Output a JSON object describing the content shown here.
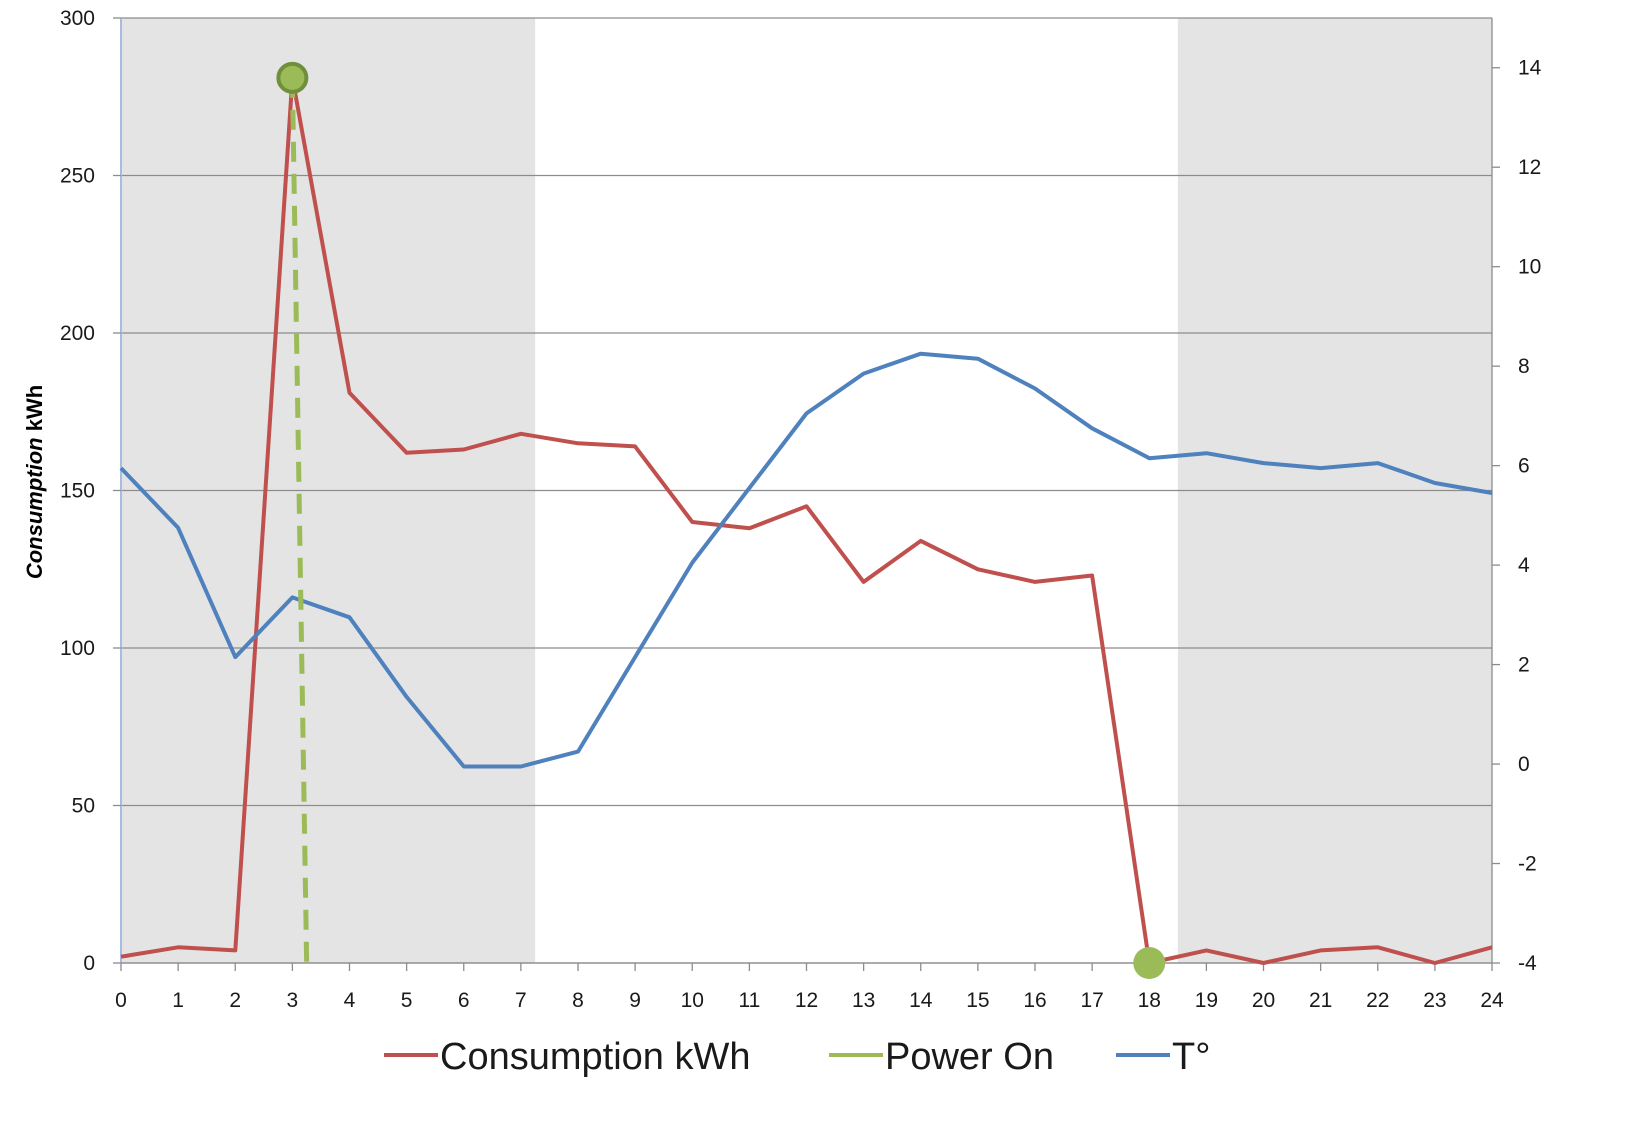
{
  "chart_data": {
    "type": "line",
    "title": "",
    "xlabel": "",
    "ylabel": "Consumption kWh",
    "ylabel_parts": {
      "italic": "Consumption",
      "normal": "kWh"
    },
    "x": [
      0,
      1,
      2,
      3,
      4,
      5,
      6,
      7,
      8,
      9,
      10,
      11,
      12,
      13,
      14,
      15,
      16,
      17,
      18,
      19,
      20,
      21,
      22,
      23,
      24
    ],
    "x_ticks": [
      "0",
      "1",
      "2",
      "3",
      "4",
      "5",
      "6",
      "7",
      "8",
      "9",
      "10",
      "11",
      "12",
      "13",
      "14",
      "15",
      "16",
      "17",
      "18",
      "19",
      "20",
      "21",
      "22",
      "23",
      "24"
    ],
    "ylim": [
      0,
      300
    ],
    "y_ticks": [
      "0",
      "50",
      "100",
      "150",
      "200",
      "250",
      "300"
    ],
    "y2lim": [
      -4,
      15
    ],
    "y2_ticks": [
      "-4",
      "-2",
      "0",
      "2",
      "4",
      "6",
      "8",
      "10",
      "12",
      "14"
    ],
    "grid": true,
    "legend_position": "bottom",
    "shaded_regions": [
      {
        "x_start": 0,
        "x_end": 7.25
      },
      {
        "x_start": 18.5,
        "x_end": 24
      }
    ],
    "series": [
      {
        "name": "Consumption kWh",
        "axis": "left",
        "color": "#c0504d",
        "values": [
          2,
          5,
          4,
          281,
          181,
          162,
          163,
          168,
          165,
          164,
          140,
          138,
          145,
          121,
          134,
          125,
          121,
          123,
          0,
          4,
          0,
          4,
          5,
          0,
          5
        ]
      },
      {
        "name": "Power On",
        "axis": "left",
        "color": "#9bbb59",
        "style": "dashed",
        "points": [
          {
            "x": 3,
            "y": 281,
            "marker": "circle"
          },
          {
            "x": 3.25,
            "y": 0,
            "marker": "none"
          },
          {
            "x": 18,
            "y": 0,
            "marker": "circle"
          }
        ]
      },
      {
        "name": "T°",
        "axis": "right",
        "color": "#4f81bd",
        "values": [
          5.95,
          4.75,
          2.15,
          3.35,
          2.95,
          1.35,
          -0.05,
          -0.05,
          0.25,
          2.15,
          4.05,
          5.55,
          7.05,
          7.85,
          8.25,
          8.15,
          7.55,
          6.75,
          6.15,
          6.25,
          6.05,
          5.95,
          6.05,
          5.65,
          5.45
        ]
      }
    ]
  }
}
